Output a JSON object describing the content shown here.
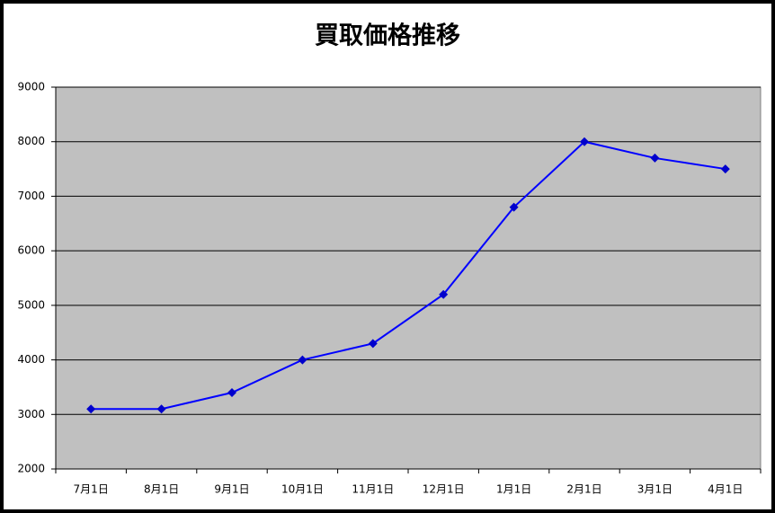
{
  "chart_data": {
    "type": "line",
    "title": "買取価格推移",
    "categories": [
      "7月1日",
      "8月1日",
      "9月1日",
      "10月1日",
      "11月1日",
      "12月1日",
      "1月1日",
      "2月1日",
      "3月1日",
      "4月1日"
    ],
    "series": [
      {
        "color": "#0000ff",
        "values": [
          3100,
          3100,
          3400,
          4000,
          4300,
          5200,
          6800,
          8000,
          7700,
          7500
        ]
      }
    ],
    "ylim": [
      2000,
      9000
    ],
    "yticks": [
      2000,
      3000,
      4000,
      5000,
      6000,
      7000,
      8000,
      9000
    ],
    "grid": true
  }
}
